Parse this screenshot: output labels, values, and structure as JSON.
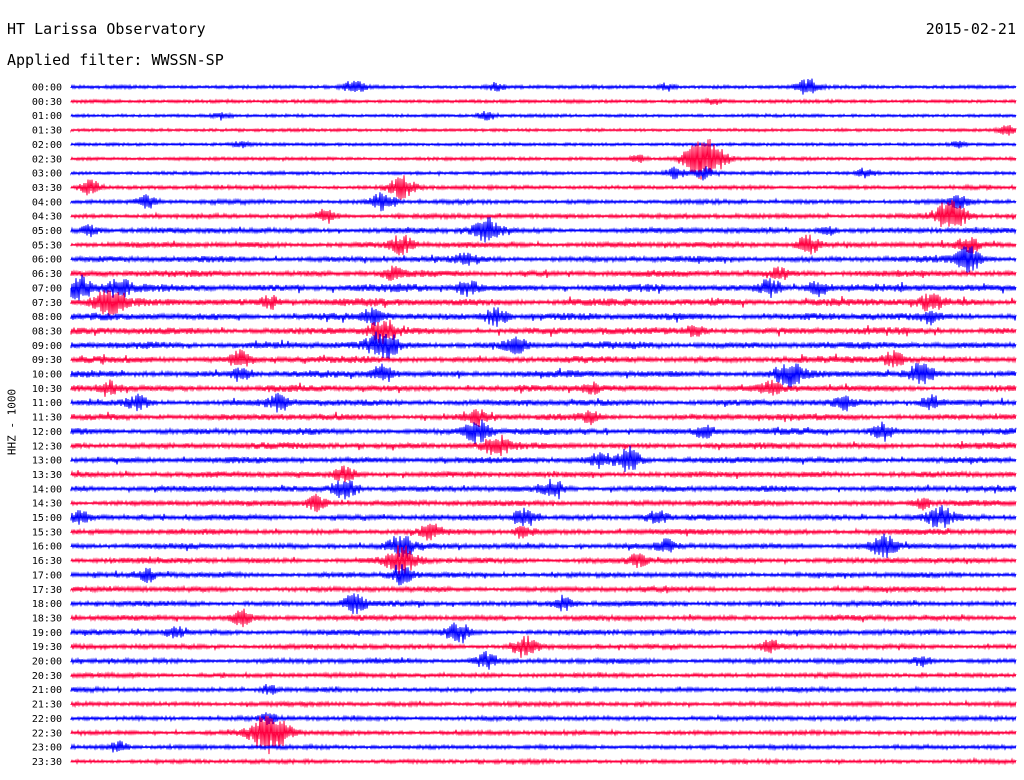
{
  "header": {
    "station": "HT Larissa Observatory",
    "date": "2015-02-21",
    "filter": "Applied filter: WWSSN-SP"
  },
  "chart_data": {
    "type": "line",
    "title": "HT Larissa Observatory",
    "ylabel": "HHZ - 1000",
    "row_labels": [
      "00:00",
      "00:30",
      "01:00",
      "01:30",
      "02:00",
      "02:30",
      "03:00",
      "03:30",
      "04:00",
      "04:30",
      "05:00",
      "05:30",
      "06:00",
      "06:30",
      "07:00",
      "07:30",
      "08:00",
      "08:30",
      "09:00",
      "09:30",
      "10:00",
      "10:30",
      "11:00",
      "11:30",
      "12:00",
      "12:30",
      "13:00",
      "13:30",
      "14:00",
      "14:30",
      "15:00",
      "15:30",
      "16:00",
      "16:30",
      "17:00",
      "17:30",
      "18:00",
      "18:30",
      "19:00",
      "19:30",
      "20:00",
      "20:30",
      "21:00",
      "21:30",
      "22:00",
      "22:30",
      "23:00",
      "23:30"
    ],
    "colors": [
      "#0000ff",
      "#ff0040"
    ],
    "activity": [
      0.15,
      0.12,
      0.08,
      0.08,
      0.08,
      0.12,
      0.12,
      0.2,
      0.25,
      0.3,
      0.4,
      0.45,
      0.5,
      0.55,
      0.7,
      0.7,
      0.65,
      0.65,
      0.65,
      0.6,
      0.6,
      0.55,
      0.55,
      0.55,
      0.55,
      0.55,
      0.5,
      0.5,
      0.5,
      0.45,
      0.45,
      0.45,
      0.45,
      0.45,
      0.4,
      0.4,
      0.4,
      0.4,
      0.4,
      0.35,
      0.35,
      0.3,
      0.3,
      0.3,
      0.3,
      0.28,
      0.25,
      0.25
    ],
    "bursts": [
      [
        0,
        0.3,
        0.7
      ],
      [
        0,
        0.45,
        0.4
      ],
      [
        0,
        0.63,
        0.4
      ],
      [
        0,
        0.78,
        0.9
      ],
      [
        1,
        0.68,
        0.3
      ],
      [
        2,
        0.16,
        0.4
      ],
      [
        2,
        0.44,
        0.5
      ],
      [
        3,
        0.99,
        0.5
      ],
      [
        4,
        0.18,
        0.3
      ],
      [
        4,
        0.94,
        0.3
      ],
      [
        5,
        0.67,
        2.3
      ],
      [
        5,
        0.6,
        0.4
      ],
      [
        6,
        0.64,
        0.6
      ],
      [
        6,
        0.84,
        0.5
      ],
      [
        6,
        0.67,
        0.7
      ],
      [
        7,
        0.02,
        0.8
      ],
      [
        7,
        0.35,
        1.2
      ],
      [
        8,
        0.08,
        0.7
      ],
      [
        8,
        0.33,
        1.1
      ],
      [
        8,
        0.94,
        0.7
      ],
      [
        9,
        0.27,
        0.7
      ],
      [
        9,
        0.93,
        1.7
      ],
      [
        10,
        0.02,
        0.6
      ],
      [
        10,
        0.44,
        1.3
      ],
      [
        10,
        0.8,
        0.5
      ],
      [
        11,
        0.35,
        1.0
      ],
      [
        11,
        0.78,
        1.0
      ],
      [
        11,
        0.95,
        0.8
      ],
      [
        12,
        0.42,
        0.7
      ],
      [
        12,
        0.95,
        1.3
      ],
      [
        13,
        0.34,
        0.6
      ],
      [
        13,
        0.75,
        0.6
      ],
      [
        14,
        0.01,
        1.3
      ],
      [
        14,
        0.05,
        1.0
      ],
      [
        14,
        0.42,
        0.8
      ],
      [
        14,
        0.74,
        0.9
      ],
      [
        14,
        0.79,
        0.8
      ],
      [
        15,
        0.04,
        1.4
      ],
      [
        15,
        0.21,
        0.7
      ],
      [
        15,
        0.91,
        0.9
      ],
      [
        16,
        0.32,
        0.8
      ],
      [
        16,
        0.45,
        1.0
      ],
      [
        16,
        0.91,
        0.6
      ],
      [
        17,
        0.33,
        1.2
      ],
      [
        17,
        0.66,
        0.6
      ],
      [
        18,
        0.33,
        1.5
      ],
      [
        18,
        0.47,
        0.8
      ],
      [
        19,
        0.18,
        0.9
      ],
      [
        19,
        0.87,
        0.8
      ],
      [
        20,
        0.18,
        0.8
      ],
      [
        20,
        0.33,
        0.9
      ],
      [
        20,
        0.76,
        1.3
      ],
      [
        20,
        0.9,
        1.1
      ],
      [
        21,
        0.04,
        0.8
      ],
      [
        21,
        0.55,
        0.6
      ],
      [
        21,
        0.74,
        0.7
      ],
      [
        22,
        0.07,
        0.7
      ],
      [
        22,
        0.22,
        0.9
      ],
      [
        22,
        0.82,
        0.6
      ],
      [
        22,
        0.91,
        0.8
      ],
      [
        23,
        0.43,
        0.8
      ],
      [
        23,
        0.55,
        0.6
      ],
      [
        24,
        0.43,
        1.2
      ],
      [
        24,
        0.86,
        0.9
      ],
      [
        24,
        0.67,
        0.7
      ],
      [
        25,
        0.45,
        1.1
      ],
      [
        26,
        0.59,
        1.2
      ],
      [
        26,
        0.56,
        0.8
      ],
      [
        27,
        0.29,
        0.8
      ],
      [
        28,
        0.29,
        1.2
      ],
      [
        28,
        0.51,
        0.9
      ],
      [
        29,
        0.26,
        0.8
      ],
      [
        29,
        0.9,
        0.6
      ],
      [
        30,
        0.01,
        0.7
      ],
      [
        30,
        0.48,
        1.0
      ],
      [
        30,
        0.62,
        0.8
      ],
      [
        30,
        0.92,
        1.1
      ],
      [
        31,
        0.38,
        0.8
      ],
      [
        31,
        0.48,
        0.6
      ],
      [
        32,
        0.35,
        1.2
      ],
      [
        32,
        0.86,
        1.1
      ],
      [
        32,
        0.63,
        0.6
      ],
      [
        33,
        0.35,
        1.5
      ],
      [
        33,
        0.6,
        0.6
      ],
      [
        34,
        0.35,
        1.0
      ],
      [
        34,
        0.08,
        0.7
      ],
      [
        36,
        0.3,
        1.0
      ],
      [
        36,
        0.52,
        0.8
      ],
      [
        37,
        0.18,
        0.8
      ],
      [
        38,
        0.41,
        1.0
      ],
      [
        38,
        0.11,
        0.6
      ],
      [
        39,
        0.48,
        1.1
      ],
      [
        39,
        0.74,
        0.7
      ],
      [
        40,
        0.44,
        0.9
      ],
      [
        40,
        0.9,
        0.6
      ],
      [
        42,
        0.21,
        0.5
      ],
      [
        44,
        0.21,
        0.5
      ],
      [
        45,
        0.21,
        2.2
      ],
      [
        46,
        0.05,
        0.6
      ]
    ]
  }
}
